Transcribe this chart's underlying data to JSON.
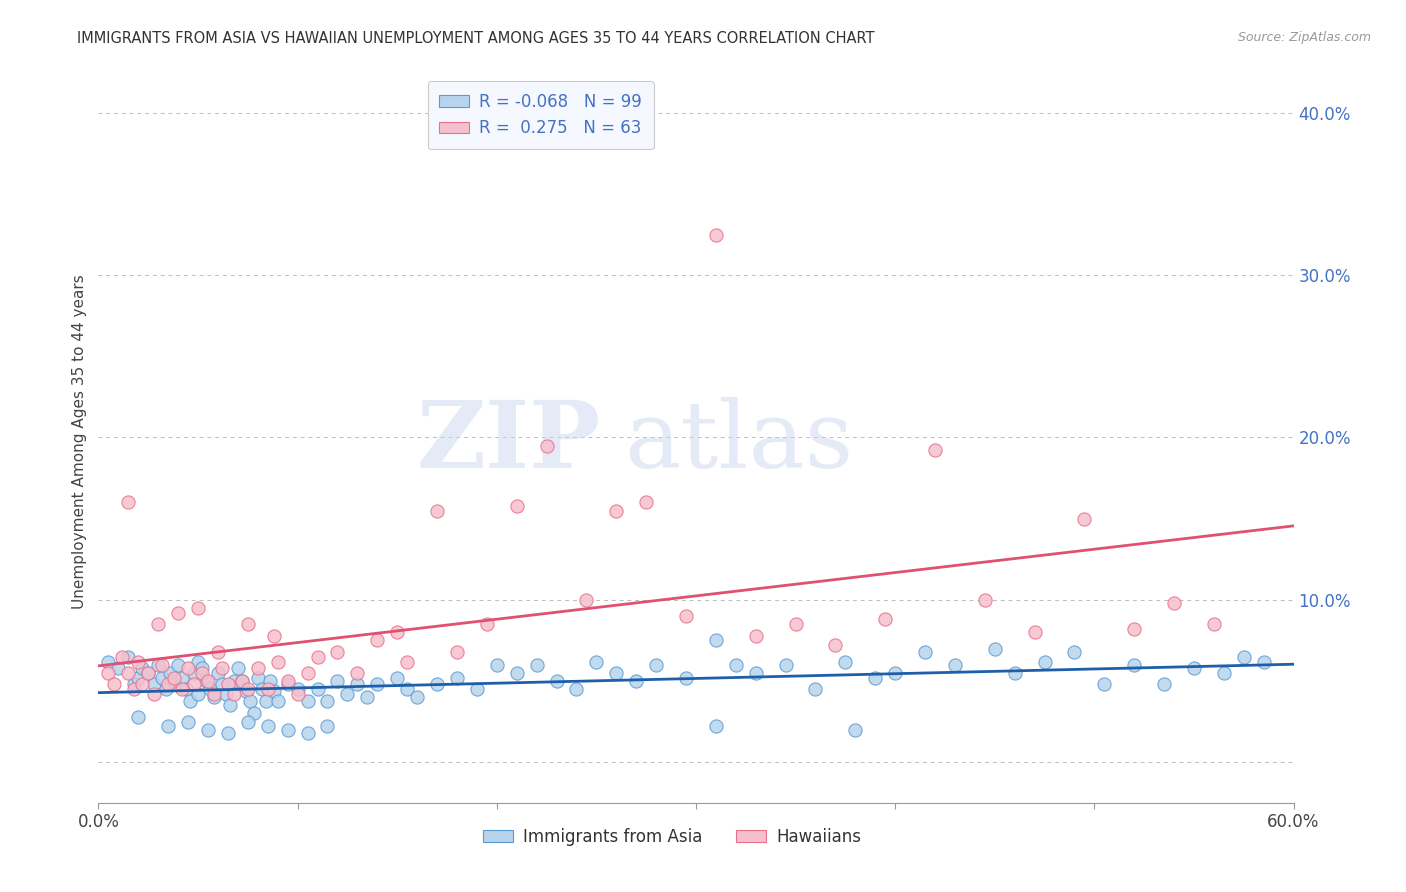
{
  "title": "IMMIGRANTS FROM ASIA VS HAWAIIAN UNEMPLOYMENT AMONG AGES 35 TO 44 YEARS CORRELATION CHART",
  "source": "Source: ZipAtlas.com",
  "ylabel": "Unemployment Among Ages 35 to 44 years",
  "xlim": [
    0.0,
    0.6
  ],
  "ylim": [
    -0.025,
    0.42
  ],
  "xticks": [
    0.0,
    0.1,
    0.2,
    0.3,
    0.4,
    0.5,
    0.6
  ],
  "xticklabels": [
    "0.0%",
    "",
    "",
    "",
    "",
    "",
    "60.0%"
  ],
  "yticks_right": [
    0.0,
    0.1,
    0.2,
    0.3,
    0.4
  ],
  "ytick_labels_right": [
    "",
    "10.0%",
    "20.0%",
    "30.0%",
    "40.0%"
  ],
  "grid_yticks": [
    0.0,
    0.1,
    0.2,
    0.3,
    0.4
  ],
  "series1_name": "Immigrants from Asia",
  "series1_color": "#b8d4ec",
  "series1_edge": "#5b9bd5",
  "series1_R": -0.068,
  "series1_N": 99,
  "series1_line_color": "#1f5faa",
  "series2_name": "Hawaiians",
  "series2_color": "#f5c0ce",
  "series2_edge": "#e8708a",
  "series2_R": 0.275,
  "series2_N": 63,
  "series2_line_color": "#e05070",
  "watermark_zip": "ZIP",
  "watermark_atlas": "atlas",
  "background_color": "#ffffff",
  "right_axis_color": "#4472c4",
  "series1_x": [
    0.005,
    0.01,
    0.015,
    0.018,
    0.02,
    0.022,
    0.025,
    0.028,
    0.03,
    0.032,
    0.034,
    0.036,
    0.038,
    0.04,
    0.042,
    0.044,
    0.046,
    0.048,
    0.05,
    0.05,
    0.052,
    0.054,
    0.056,
    0.058,
    0.06,
    0.062,
    0.064,
    0.066,
    0.068,
    0.07,
    0.072,
    0.074,
    0.076,
    0.078,
    0.08,
    0.082,
    0.084,
    0.086,
    0.088,
    0.09,
    0.095,
    0.1,
    0.105,
    0.11,
    0.115,
    0.12,
    0.125,
    0.13,
    0.135,
    0.14,
    0.15,
    0.155,
    0.16,
    0.17,
    0.18,
    0.19,
    0.2,
    0.21,
    0.22,
    0.23,
    0.24,
    0.25,
    0.26,
    0.27,
    0.28,
    0.295,
    0.31,
    0.32,
    0.33,
    0.345,
    0.36,
    0.375,
    0.39,
    0.4,
    0.415,
    0.43,
    0.45,
    0.46,
    0.475,
    0.49,
    0.505,
    0.52,
    0.535,
    0.55,
    0.565,
    0.575,
    0.585,
    0.02,
    0.035,
    0.065,
    0.045,
    0.055,
    0.075,
    0.085,
    0.095,
    0.105,
    0.115,
    0.31,
    0.38
  ],
  "series1_y": [
    0.062,
    0.058,
    0.065,
    0.048,
    0.052,
    0.058,
    0.055,
    0.048,
    0.06,
    0.052,
    0.045,
    0.055,
    0.05,
    0.06,
    0.052,
    0.045,
    0.038,
    0.055,
    0.062,
    0.042,
    0.058,
    0.05,
    0.045,
    0.04,
    0.055,
    0.048,
    0.042,
    0.035,
    0.05,
    0.058,
    0.05,
    0.044,
    0.038,
    0.03,
    0.052,
    0.045,
    0.038,
    0.05,
    0.044,
    0.038,
    0.048,
    0.045,
    0.038,
    0.045,
    0.038,
    0.05,
    0.042,
    0.048,
    0.04,
    0.048,
    0.052,
    0.045,
    0.04,
    0.048,
    0.052,
    0.045,
    0.06,
    0.055,
    0.06,
    0.05,
    0.045,
    0.062,
    0.055,
    0.05,
    0.06,
    0.052,
    0.075,
    0.06,
    0.055,
    0.06,
    0.045,
    0.062,
    0.052,
    0.055,
    0.068,
    0.06,
    0.07,
    0.055,
    0.062,
    0.068,
    0.048,
    0.06,
    0.048,
    0.058,
    0.055,
    0.065,
    0.062,
    0.028,
    0.022,
    0.018,
    0.025,
    0.02,
    0.025,
    0.022,
    0.02,
    0.018,
    0.022,
    0.022,
    0.02
  ],
  "series2_x": [
    0.005,
    0.008,
    0.012,
    0.015,
    0.018,
    0.02,
    0.022,
    0.025,
    0.028,
    0.032,
    0.035,
    0.038,
    0.042,
    0.045,
    0.048,
    0.052,
    0.055,
    0.058,
    0.062,
    0.065,
    0.068,
    0.072,
    0.075,
    0.08,
    0.085,
    0.09,
    0.095,
    0.1,
    0.105,
    0.11,
    0.12,
    0.13,
    0.14,
    0.15,
    0.155,
    0.17,
    0.18,
    0.195,
    0.21,
    0.225,
    0.245,
    0.26,
    0.275,
    0.295,
    0.31,
    0.33,
    0.35,
    0.37,
    0.395,
    0.42,
    0.445,
    0.47,
    0.495,
    0.52,
    0.54,
    0.56,
    0.015,
    0.03,
    0.04,
    0.05,
    0.06,
    0.075,
    0.088
  ],
  "series2_y": [
    0.055,
    0.048,
    0.065,
    0.055,
    0.045,
    0.062,
    0.048,
    0.055,
    0.042,
    0.06,
    0.048,
    0.052,
    0.045,
    0.058,
    0.048,
    0.055,
    0.05,
    0.042,
    0.058,
    0.048,
    0.042,
    0.05,
    0.045,
    0.058,
    0.045,
    0.062,
    0.05,
    0.042,
    0.055,
    0.065,
    0.068,
    0.055,
    0.075,
    0.08,
    0.062,
    0.155,
    0.068,
    0.085,
    0.158,
    0.195,
    0.1,
    0.155,
    0.16,
    0.09,
    0.325,
    0.078,
    0.085,
    0.072,
    0.088,
    0.192,
    0.1,
    0.08,
    0.15,
    0.082,
    0.098,
    0.085,
    0.16,
    0.085,
    0.092,
    0.095,
    0.068,
    0.085,
    0.078
  ]
}
